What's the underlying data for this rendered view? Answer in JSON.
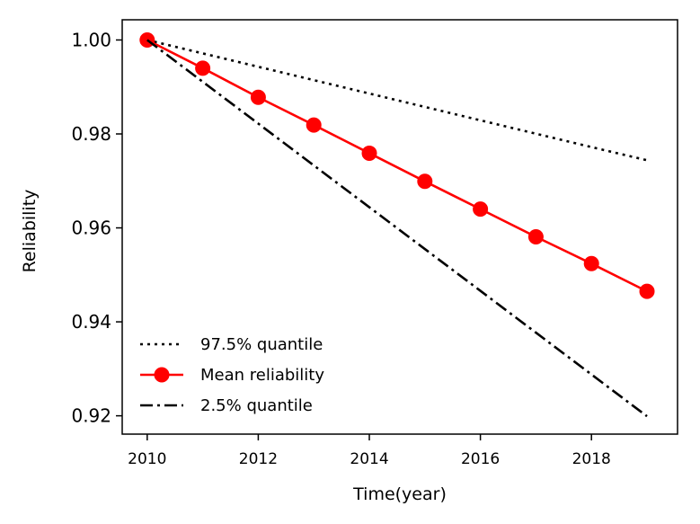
{
  "chart_data": {
    "type": "line",
    "title": "",
    "xlabel": "Time(year)",
    "ylabel": "Reliability",
    "xlim": [
      2009.55,
      2019.55
    ],
    "ylim": [
      0.9161,
      1.0043
    ],
    "xticks": [
      2010,
      2012,
      2014,
      2016,
      2018
    ],
    "xtick_labels": [
      "2010",
      "2012",
      "2014",
      "2016",
      "2018"
    ],
    "yticks": [
      0.92,
      0.94,
      0.96,
      0.98,
      1.0
    ],
    "ytick_labels": [
      "0.92",
      "0.94",
      "0.96",
      "0.98",
      "1.00"
    ],
    "grid": false,
    "legend_position": "lower-left",
    "x": [
      2010,
      2011,
      2012,
      2013,
      2014,
      2015,
      2016,
      2017,
      2018,
      2019
    ],
    "series": [
      {
        "name": "97.5% quantile",
        "color": "#000000",
        "style": "dotted",
        "marker": "none",
        "values": [
          1.0,
          0.99715,
          0.9943,
          0.99145,
          0.9886,
          0.98575,
          0.9829,
          0.98005,
          0.9772,
          0.9744
        ]
      },
      {
        "name": "Mean reliability",
        "color": "#ff0000",
        "style": "solid",
        "marker": "circle",
        "values": [
          1.0,
          0.994,
          0.9878,
          0.9819,
          0.9759,
          0.9699,
          0.964,
          0.9581,
          0.9524,
          0.9465
        ]
      },
      {
        "name": "2.5% quantile",
        "color": "#000000",
        "style": "dashdot",
        "marker": "none",
        "values": [
          1.0,
          0.9911,
          0.9822,
          0.9733,
          0.9644,
          0.9555,
          0.9466,
          0.9377,
          0.9288,
          0.9199
        ]
      }
    ]
  }
}
